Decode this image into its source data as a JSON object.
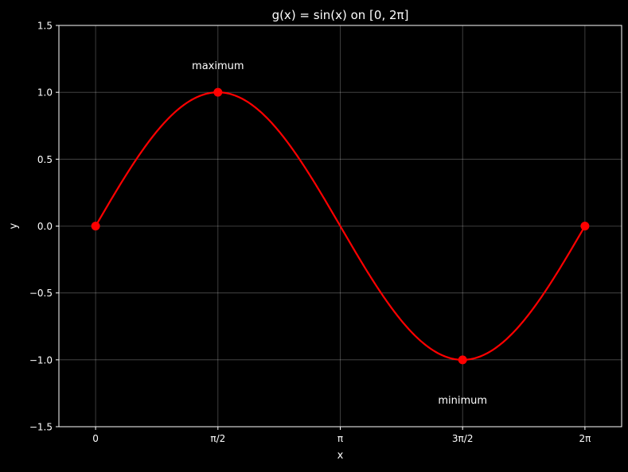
{
  "chart_data": {
    "type": "line",
    "title": "g(x) = sin(x) on [0, 2π]",
    "xlabel": "x",
    "ylabel": "y",
    "xlim": [
      -0.4712,
      6.7544
    ],
    "ylim": [
      -1.5,
      1.5
    ],
    "x_ticks": [
      {
        "value": 0,
        "label": "0"
      },
      {
        "value": 1.5708,
        "label": "π/2"
      },
      {
        "value": 3.1416,
        "label": "π"
      },
      {
        "value": 4.7124,
        "label": "3π/2"
      },
      {
        "value": 6.2832,
        "label": "2π"
      }
    ],
    "y_ticks": [
      {
        "value": -1.5,
        "label": "−1.5"
      },
      {
        "value": -1.0,
        "label": "−1.0"
      },
      {
        "value": -0.5,
        "label": "−0.5"
      },
      {
        "value": 0.0,
        "label": "0.0"
      },
      {
        "value": 0.5,
        "label": "0.5"
      },
      {
        "value": 1.0,
        "label": "1.0"
      },
      {
        "value": 1.5,
        "label": "1.5"
      }
    ],
    "grid": true,
    "series": [
      {
        "function": "sin(x)",
        "x_range": [
          0,
          6.2832
        ],
        "color": "#ff0000"
      }
    ],
    "markers": [
      {
        "x": 0,
        "y": 0
      },
      {
        "x": 1.5708,
        "y": 1
      },
      {
        "x": 4.7124,
        "y": -1
      },
      {
        "x": 6.2832,
        "y": 0
      }
    ],
    "annotations": [
      {
        "text": "maximum",
        "x": 1.5708,
        "y": 1.2
      },
      {
        "text": "minimum",
        "x": 4.7124,
        "y": -1.3
      }
    ],
    "colors": {
      "background": "#000000",
      "axes": "#ffffff",
      "text": "#ffffff",
      "grid": "#ffffff",
      "line": "#ff0000",
      "marker": "#ff0000"
    }
  }
}
